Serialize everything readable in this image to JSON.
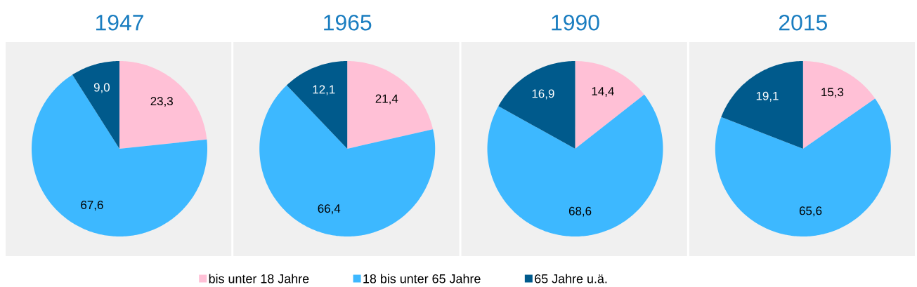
{
  "chart_data": [
    {
      "type": "pie",
      "title": "1947",
      "categories": [
        "bis unter 18 Jahre",
        "18 bis unter 65 Jahre",
        "65 Jahre u.ä."
      ],
      "values": [
        23.3,
        67.6,
        9.0
      ],
      "colors": [
        "#ffc0d6",
        "#3db8ff",
        "#005a8c"
      ],
      "value_labels": [
        "23,3",
        "67,6",
        "9,0"
      ],
      "legend": "bottom"
    },
    {
      "type": "pie",
      "title": "1965",
      "values": [
        21.4,
        66.4,
        12.1
      ],
      "colors": [
        "#ffc0d6",
        "#3db8ff",
        "#005a8c"
      ],
      "value_labels": [
        "21,4",
        "66,4",
        "12,1"
      ]
    },
    {
      "type": "pie",
      "title": "1990",
      "values": [
        14.4,
        68.6,
        16.9
      ],
      "colors": [
        "#ffc0d6",
        "#3db8ff",
        "#005a8c"
      ],
      "value_labels": [
        "14,4",
        "68,6",
        "16,9"
      ]
    },
    {
      "type": "pie",
      "title": "2015",
      "values": [
        15.3,
        65.6,
        19.1
      ],
      "colors": [
        "#ffc0d6",
        "#3db8ff",
        "#005a8c"
      ],
      "value_labels": [
        "15,3",
        "65,6",
        "19,1"
      ]
    }
  ]
}
